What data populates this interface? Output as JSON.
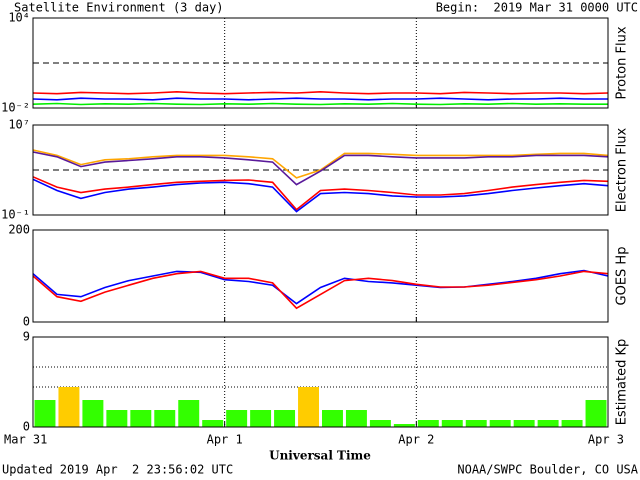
{
  "header": {
    "title": "Satellite Environment (3 day)",
    "begin": "Begin:  2019 Mar 31 0000 UTC"
  },
  "footer": {
    "updated": "Updated 2019 Apr  2 23:56:02 UTC",
    "source": "NOAA/SWPC Boulder, CO USA"
  },
  "time_axis": {
    "label": "Universal Time",
    "xlim": [
      0,
      3
    ],
    "xticks": [
      {
        "value": 0,
        "label": "Mar 31"
      },
      {
        "value": 1,
        "label": "Apr 1"
      },
      {
        "value": 2,
        "label": "Apr 2"
      },
      {
        "value": 3,
        "label": "Apr 3"
      }
    ],
    "grid": true,
    "x": [
      0,
      0.125,
      0.25,
      0.375,
      0.5,
      0.625,
      0.75,
      0.875,
      1,
      1.125,
      1.25,
      1.375,
      1.5,
      1.625,
      1.75,
      1.875,
      2,
      2.125,
      2.25,
      2.375,
      2.5,
      2.625,
      2.75,
      2.875,
      3
    ]
  },
  "chart_data": [
    {
      "type": "line",
      "y_label": "Proton Flux",
      "log_scale": true,
      "ylim": [
        0.01,
        10000
      ],
      "yticks": [
        {
          "value": 10000,
          "label": "10⁴"
        },
        {
          "value": 0.01,
          "label": "10⁻²"
        }
      ],
      "reference_lines": [
        10
      ],
      "series": [
        {
          "color": "#ff0000",
          "values": [
            0.1,
            0.09,
            0.11,
            0.1,
            0.09,
            0.1,
            0.12,
            0.1,
            0.09,
            0.1,
            0.11,
            0.1,
            0.12,
            0.1,
            0.09,
            0.1,
            0.1,
            0.09,
            0.11,
            0.1,
            0.09,
            0.1,
            0.1,
            0.09,
            0.1
          ]
        },
        {
          "color": "#0000ff",
          "values": [
            0.04,
            0.035,
            0.045,
            0.04,
            0.04,
            0.035,
            0.045,
            0.04,
            0.04,
            0.035,
            0.04,
            0.045,
            0.04,
            0.04,
            0.035,
            0.04,
            0.04,
            0.045,
            0.04,
            0.035,
            0.04,
            0.04,
            0.045,
            0.04,
            0.04
          ]
        },
        {
          "color": "#00ee00",
          "values": [
            0.018,
            0.02,
            0.017,
            0.019,
            0.018,
            0.02,
            0.018,
            0.017,
            0.019,
            0.018,
            0.02,
            0.018,
            0.017,
            0.019,
            0.018,
            0.02,
            0.018,
            0.017,
            0.019,
            0.018,
            0.02,
            0.018,
            0.019,
            0.018,
            0.018
          ]
        }
      ]
    },
    {
      "type": "line",
      "y_label": "Electron Flux",
      "log_scale": true,
      "ylim": [
        0.1,
        10000000
      ],
      "yticks": [
        {
          "value": 10000000,
          "label": "10⁷"
        },
        {
          "value": 0.1,
          "label": "10⁻¹"
        }
      ],
      "reference_lines": [
        1000
      ],
      "series": [
        {
          "color": "#ffa500",
          "values": [
            60000,
            20000,
            3000,
            8000,
            10000,
            15000,
            20000,
            20000,
            20000,
            15000,
            10000,
            200,
            1000,
            30000,
            30000,
            25000,
            20000,
            20000,
            20000,
            20000,
            20000,
            25000,
            30000,
            30000,
            20000
          ]
        },
        {
          "color": "#5a1a9a",
          "values": [
            40000,
            15000,
            2000,
            5000,
            7000,
            10000,
            15000,
            15000,
            12000,
            8000,
            5000,
            50,
            800,
            20000,
            20000,
            15000,
            12000,
            12000,
            12000,
            15000,
            15000,
            20000,
            20000,
            20000,
            15000
          ]
        },
        {
          "color": "#ff0000",
          "values": [
            250,
            30,
            10,
            20,
            30,
            50,
            80,
            100,
            120,
            130,
            80,
            0.3,
            15,
            20,
            15,
            10,
            6,
            6,
            8,
            15,
            30,
            50,
            80,
            120,
            100
          ]
        },
        {
          "color": "#0000ff",
          "values": [
            150,
            15,
            3,
            10,
            20,
            30,
            50,
            70,
            80,
            60,
            30,
            0.2,
            8,
            10,
            8,
            5,
            4,
            4,
            5,
            8,
            15,
            25,
            40,
            60,
            40
          ]
        }
      ]
    },
    {
      "type": "line",
      "y_label": "GOES Hp",
      "ylim": [
        0,
        200
      ],
      "yticks": [
        200,
        0
      ],
      "series": [
        {
          "color": "#0000ff",
          "values": [
            105,
            60,
            55,
            75,
            90,
            100,
            110,
            108,
            92,
            88,
            80,
            40,
            75,
            95,
            88,
            85,
            80,
            75,
            76,
            82,
            88,
            95,
            105,
            112,
            100
          ]
        },
        {
          "color": "#ff0000",
          "values": [
            100,
            55,
            45,
            65,
            80,
            95,
            105,
            110,
            95,
            95,
            85,
            30,
            60,
            90,
            95,
            90,
            82,
            76,
            76,
            80,
            86,
            92,
            100,
            110,
            105
          ]
        }
      ]
    },
    {
      "type": "bar",
      "y_label": "Estimated Kp",
      "ylim": [
        0,
        9
      ],
      "yticks": [
        9,
        0
      ],
      "reference_lines": [
        4,
        6
      ],
      "values": [
        2.7,
        4,
        2.7,
        1.7,
        1.7,
        1.7,
        2.7,
        0.7,
        1.7,
        1.7,
        1.7,
        4,
        1.7,
        1.7,
        0.7,
        0.3,
        0.7,
        0.7,
        0.7,
        0.7,
        0.7,
        0.7,
        0.7,
        2.7
      ],
      "colors": [
        "#33ff00",
        "#ffcc00",
        "#33ff00",
        "#33ff00",
        "#33ff00",
        "#33ff00",
        "#33ff00",
        "#33ff00",
        "#33ff00",
        "#33ff00",
        "#33ff00",
        "#ffcc00",
        "#33ff00",
        "#33ff00",
        "#33ff00",
        "#33ff00",
        "#33ff00",
        "#33ff00",
        "#33ff00",
        "#33ff00",
        "#33ff00",
        "#33ff00",
        "#33ff00",
        "#33ff00"
      ]
    }
  ]
}
